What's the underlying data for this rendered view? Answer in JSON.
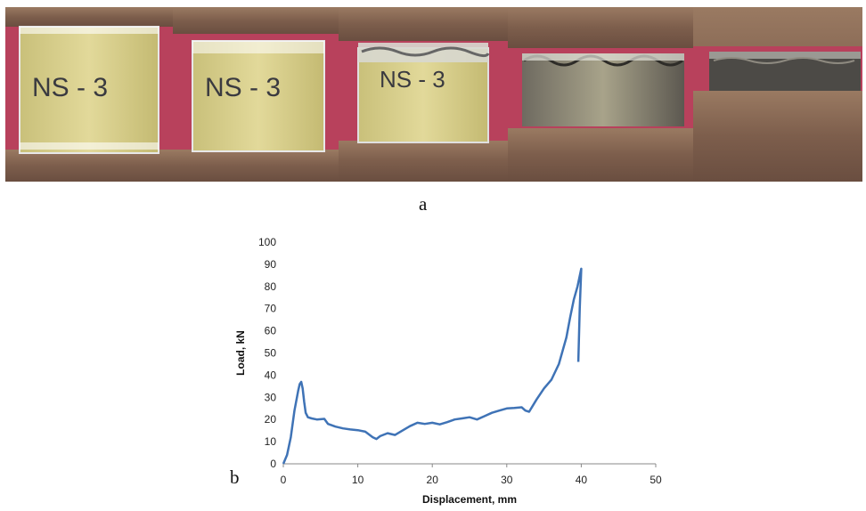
{
  "figure": {
    "label_a": "a",
    "label_b": "b"
  },
  "photos": {
    "panel_texts": [
      "NS - 3",
      "NS - 3",
      "NS - 3",
      "",
      ""
    ],
    "colors": {
      "steel": "#8a6a55",
      "steel_dark": "#5e4638",
      "background_red": "#b8415c",
      "specimen": "#d8cf8a",
      "specimen_dark": "#5a5650"
    }
  },
  "chart_data": {
    "type": "line",
    "title": "",
    "xlabel": "Displacement, mm",
    "ylabel": "Load, kN",
    "xlim": [
      0,
      50
    ],
    "ylim": [
      0,
      100
    ],
    "xticks": [
      0,
      10,
      20,
      30,
      40,
      50
    ],
    "yticks": [
      0,
      10,
      20,
      30,
      40,
      50,
      60,
      70,
      80,
      90,
      100
    ],
    "grid": false,
    "legend": "none",
    "series": [
      {
        "color": "#3f73b6",
        "x": [
          0,
          0.5,
          1,
          1.5,
          2,
          2.2,
          2.4,
          2.6,
          2.8,
          3,
          3.3,
          3.8,
          4.5,
          5.5,
          6,
          7,
          8,
          9,
          10,
          11,
          12,
          12.5,
          13,
          14,
          15,
          16,
          17,
          18,
          19,
          20,
          21,
          22,
          23,
          24,
          25,
          26,
          27,
          28,
          29,
          30,
          31,
          32,
          32.5,
          33,
          34,
          35,
          36,
          37,
          38,
          38.5,
          39,
          39.5,
          40,
          39.8,
          39.6
        ],
        "y": [
          0,
          4,
          12,
          24,
          33,
          36,
          37,
          34,
          28,
          23,
          21,
          20.5,
          20,
          20.3,
          18,
          16.8,
          16,
          15.5,
          15.2,
          14.5,
          12,
          11.2,
          12.5,
          13.8,
          13,
          15,
          17,
          18.5,
          18,
          18.5,
          17.8,
          18.8,
          20,
          20.5,
          21,
          20,
          21.5,
          23,
          24,
          25,
          25.2,
          25.5,
          24,
          23.5,
          29,
          34,
          38,
          45,
          57,
          66,
          74,
          80,
          88,
          70,
          46
        ]
      }
    ]
  }
}
